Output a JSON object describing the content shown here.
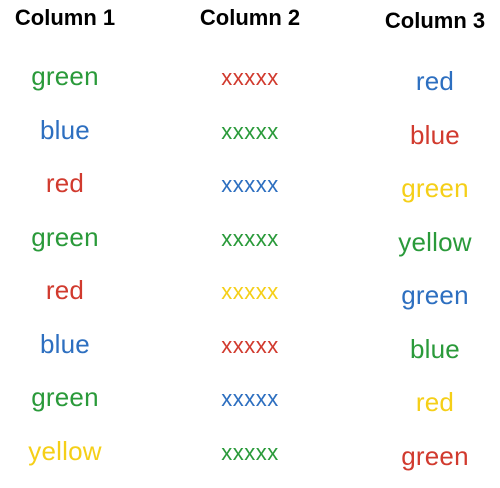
{
  "colors": {
    "green": "#2a9a3a",
    "blue": "#2d6fc0",
    "red": "#d13a2e",
    "yellow": "#f5cf18"
  },
  "columns": [
    {
      "title": "Column 1",
      "items": [
        {
          "text": "green",
          "color": "green"
        },
        {
          "text": "blue",
          "color": "blue"
        },
        {
          "text": "red",
          "color": "red"
        },
        {
          "text": "green",
          "color": "green"
        },
        {
          "text": "red",
          "color": "red"
        },
        {
          "text": "blue",
          "color": "blue"
        },
        {
          "text": "green",
          "color": "green"
        },
        {
          "text": "yellow",
          "color": "yellow"
        }
      ]
    },
    {
      "title": "Column 2",
      "items": [
        {
          "text": "xxxxx",
          "color": "red"
        },
        {
          "text": "xxxxx",
          "color": "green"
        },
        {
          "text": "xxxxx",
          "color": "blue"
        },
        {
          "text": "xxxxx",
          "color": "green"
        },
        {
          "text": "xxxxx",
          "color": "yellow"
        },
        {
          "text": "xxxxx",
          "color": "red"
        },
        {
          "text": "xxxxx",
          "color": "blue"
        },
        {
          "text": "xxxxx",
          "color": "green"
        }
      ]
    },
    {
      "title": "Column 3",
      "items": [
        {
          "text": "red",
          "color": "blue"
        },
        {
          "text": "blue",
          "color": "red"
        },
        {
          "text": "green",
          "color": "yellow"
        },
        {
          "text": "yellow",
          "color": "green"
        },
        {
          "text": "green",
          "color": "blue"
        },
        {
          "text": "blue",
          "color": "green"
        },
        {
          "text": "red",
          "color": "yellow"
        },
        {
          "text": "green",
          "color": "red"
        }
      ]
    }
  ]
}
